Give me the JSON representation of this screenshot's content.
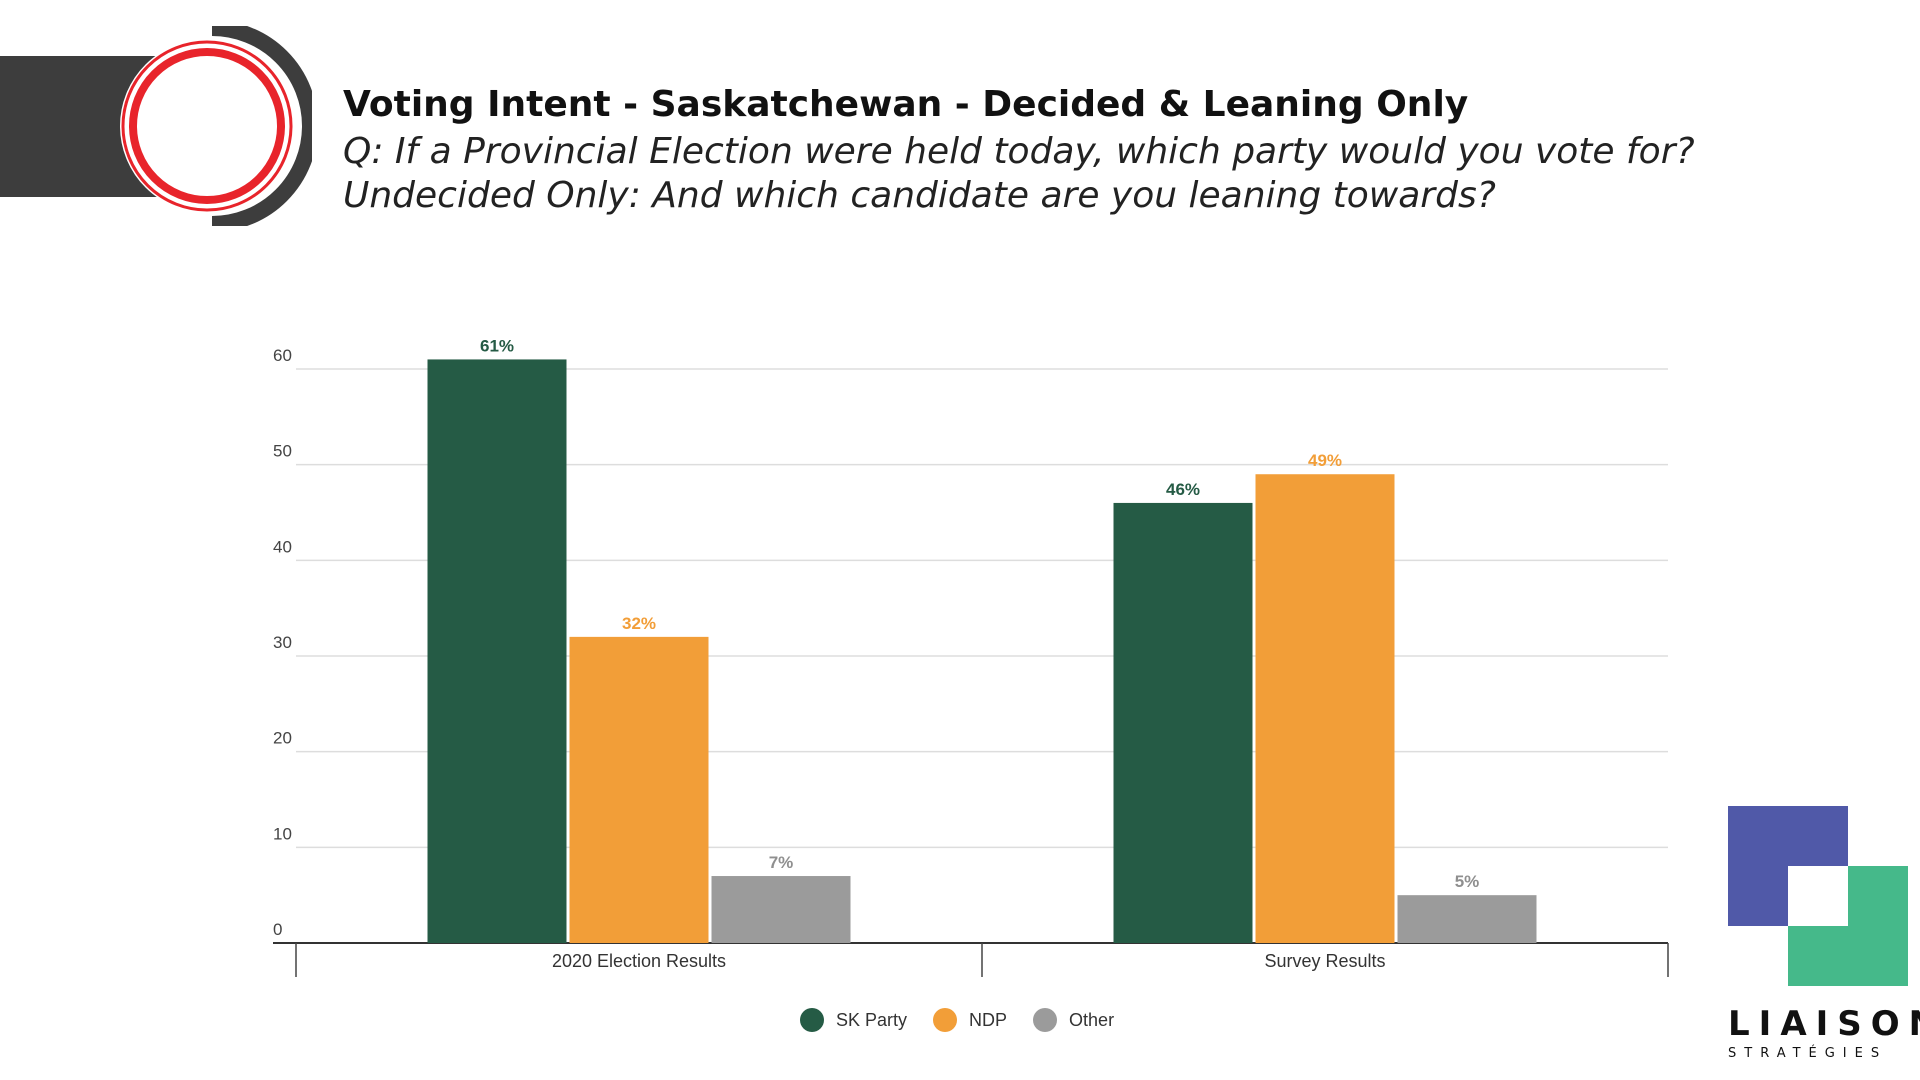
{
  "header": {
    "title": "Voting Intent - Saskatchewan - Decided & Leaning Only",
    "question": "Q: If a Provincial Election were held today, which party would you vote for?",
    "followup": "Undecided Only: And which candidate are you leaning towards?"
  },
  "brand": {
    "name": "LIAISON",
    "sub": "STRATÉGIES",
    "colors": {
      "purple": "#5059a8",
      "green": "#45b98a"
    }
  },
  "header_colors": {
    "band": "#3d3d3d",
    "ring_red": "#e8242b",
    "ring_dark": "#3d3d3d"
  },
  "chart_data": {
    "type": "bar",
    "categories": [
      "2020 Election Results",
      "Survey Results"
    ],
    "series": [
      {
        "name": "SK Party",
        "color": "#255b45",
        "label_color": "#255b45",
        "values": [
          61,
          46
        ],
        "labels": [
          "61%",
          "46%"
        ]
      },
      {
        "name": "NDP",
        "color": "#f29e38",
        "label_color": "#f29e38",
        "values": [
          32,
          49
        ],
        "labels": [
          "32%",
          "49%"
        ]
      },
      {
        "name": "Other",
        "color": "#9b9b9b",
        "label_color": "#8f8f8f",
        "values": [
          7,
          5
        ],
        "labels": [
          "7%",
          "5%"
        ]
      }
    ],
    "yticks": [
      "0",
      "10",
      "20",
      "30",
      "40",
      "50",
      "60"
    ],
    "ylim": [
      0,
      60
    ],
    "grid": true,
    "legend_position": "bottom-center",
    "xlabel": "",
    "ylabel": ""
  }
}
